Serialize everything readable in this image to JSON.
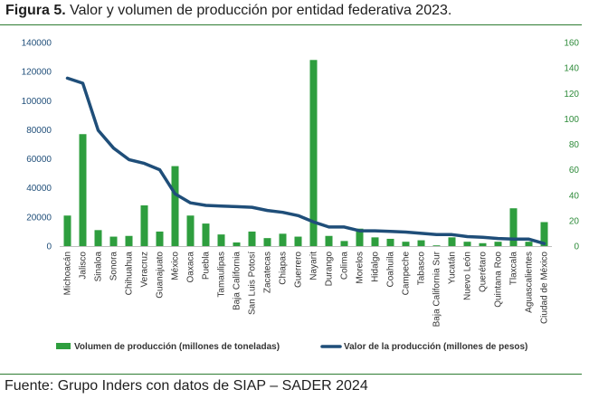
{
  "figure": {
    "label": "Figura 5.",
    "title": "Valor y volumen de producción por entidad federativa 2023.",
    "source": "Fuente: Grupo Inders con datos de SIAP – SADER 2024"
  },
  "colors": {
    "bar": "#2e9e3e",
    "line": "#1f4e79",
    "left_axis_text": "#1f4e79",
    "right_axis_text": "#2e8b3a",
    "rule": "#2e7d32"
  },
  "chart_data": {
    "type": "bar",
    "categories": [
      "Michoacán",
      "Jalisco",
      "Sinaloa",
      "Sonora",
      "Chihuahua",
      "Veracruz",
      "Guanajuato",
      "México",
      "Oaxaca",
      "Puebla",
      "Tamaulipas",
      "Baja California",
      "San Luis Potosí",
      "Zacatecas",
      "Chiapas",
      "Guerrero",
      "Nayarit",
      "Durango",
      "Colima",
      "Morelos",
      "Hidalgo",
      "Coahuila",
      "Campeche",
      "Tabasco",
      "Baja California Sur",
      "Yucatán",
      "Nuevo León",
      "Querétaro",
      "Quintana Roo",
      "Tlaxcala",
      "Aguascalientes",
      "Ciudad de México"
    ],
    "series": [
      {
        "name": "Volumen de producción (millones de toneladas)",
        "type": "bar",
        "axis": "left",
        "values": [
          21000,
          77000,
          11000,
          6500,
          7000,
          28000,
          10000,
          55000,
          21000,
          15500,
          8000,
          2500,
          10000,
          5500,
          8500,
          6500,
          128000,
          7000,
          3500,
          12000,
          6000,
          5000,
          3000,
          4000,
          500,
          6000,
          3000,
          2000,
          3000,
          26000,
          3000,
          16500
        ]
      },
      {
        "name": "Valor de la producción (millones de pesos)",
        "type": "line",
        "axis": "right",
        "values": [
          132,
          128,
          91,
          77,
          68,
          65,
          60,
          41,
          34,
          32,
          31.5,
          31,
          30.5,
          28,
          26.5,
          24,
          19,
          15,
          15,
          12,
          12,
          11.5,
          11,
          10,
          9,
          9,
          7.5,
          7,
          6,
          5.5,
          5.5,
          2
        ]
      }
    ],
    "y_left": {
      "min": 0,
      "max": 140000,
      "ticks": [
        "0",
        "20000",
        "40000",
        "60000",
        "80000",
        "100000",
        "120000",
        "140000"
      ]
    },
    "y_right": {
      "min": 0,
      "max": 160,
      "ticks": [
        "0",
        "20",
        "40",
        "60",
        "80",
        "100",
        "120",
        "140",
        "160"
      ]
    },
    "grid": false,
    "legend_position": "bottom"
  }
}
